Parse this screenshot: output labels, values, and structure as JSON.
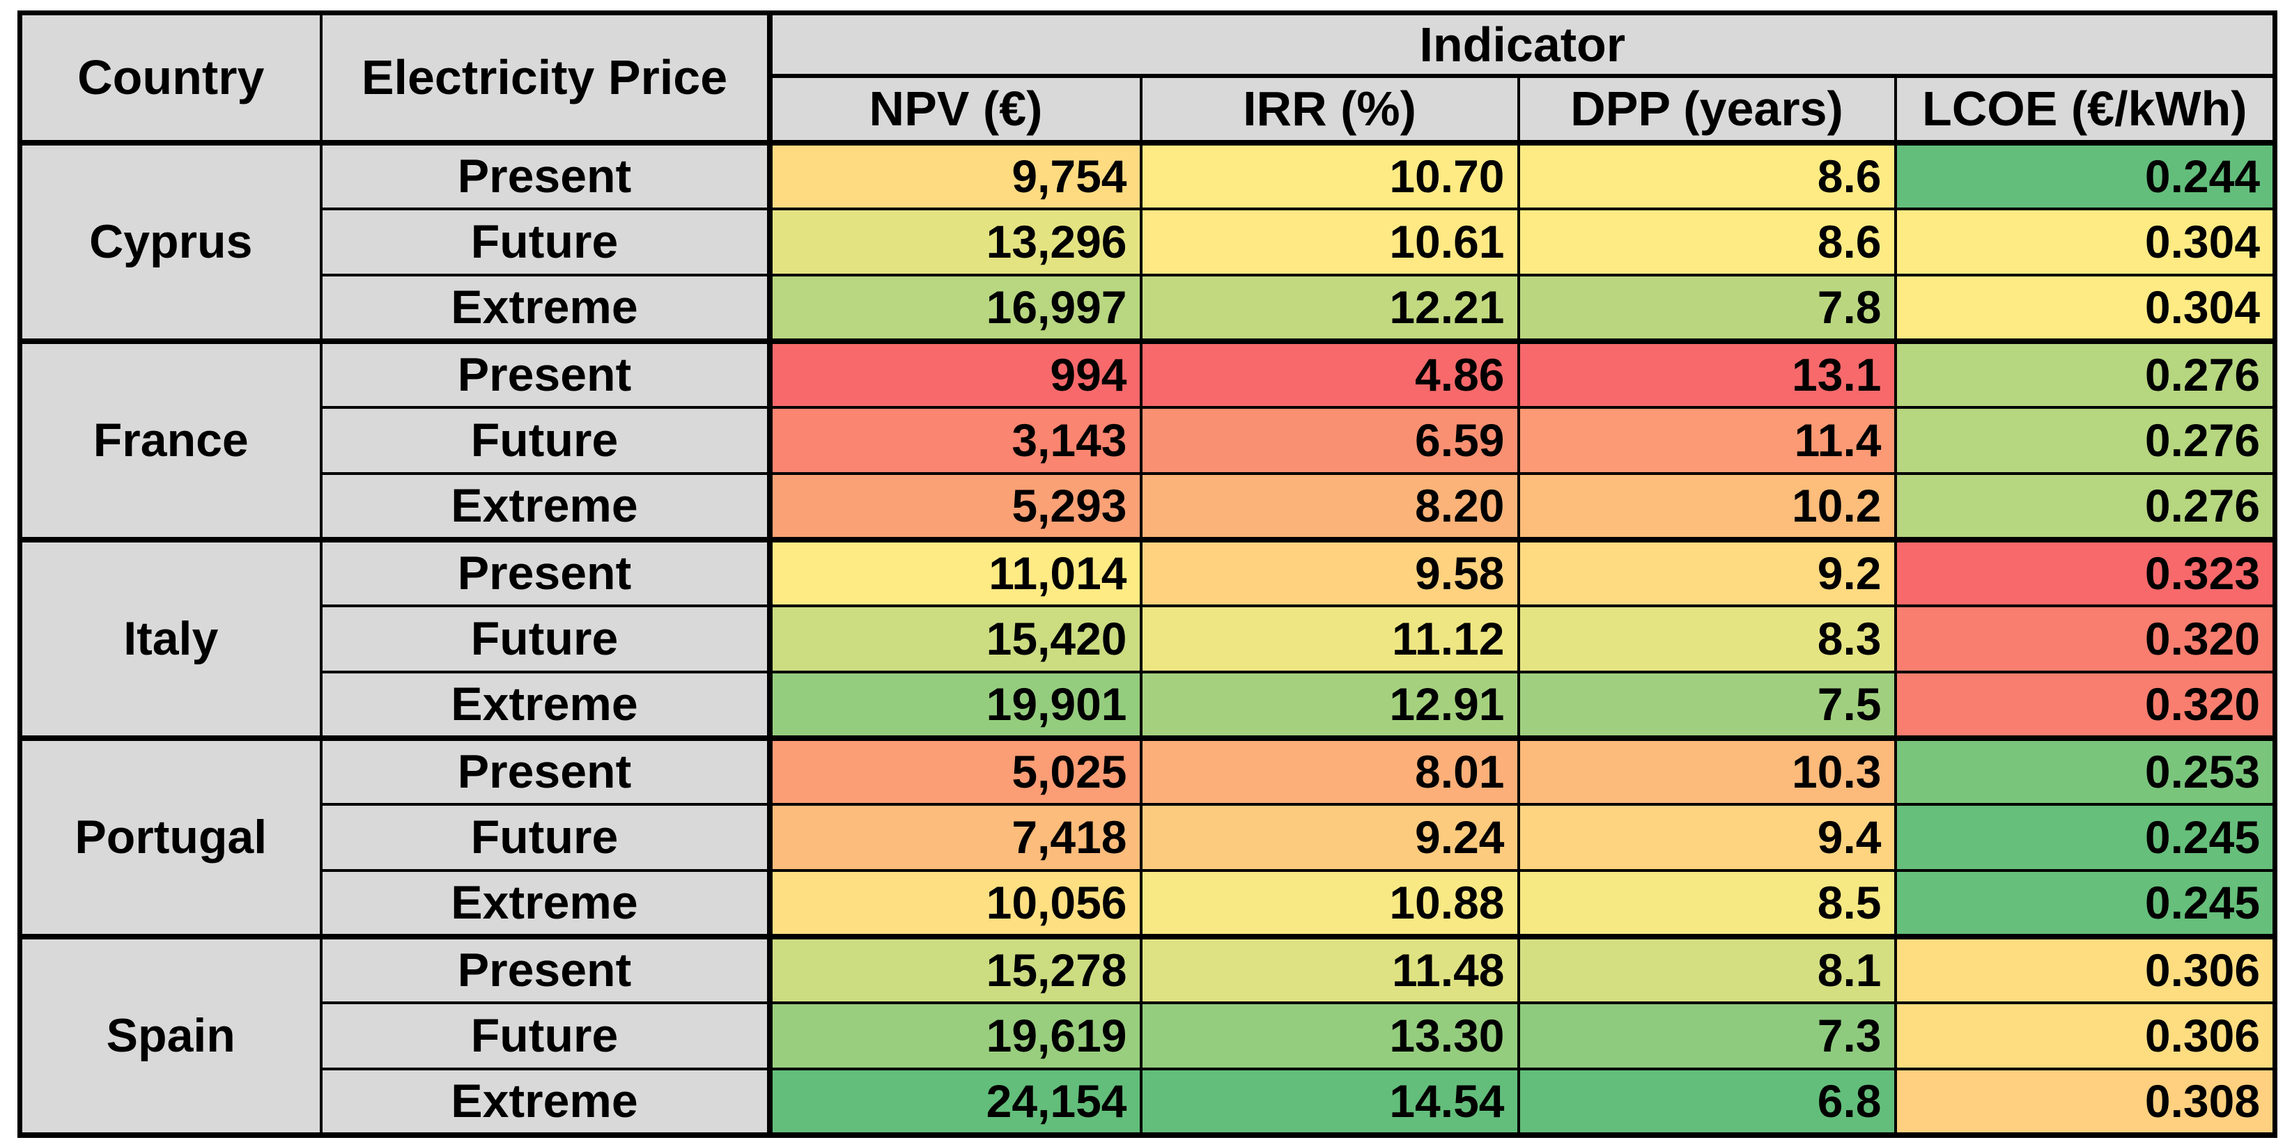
{
  "page": {
    "background": "#FFFFFF"
  },
  "table": {
    "header": {
      "country": "Country",
      "electricity_price": "Electricity Price",
      "indicator": "Indicator",
      "npv": "NPV (€)",
      "irr": "IRR (%)",
      "dpp": "DPP (years)",
      "lcoe": "LCOE (€/kWh)"
    },
    "header_fill": "#D9D9D9",
    "border_color": "#000000"
  },
  "chart_data": {
    "type": "table",
    "columns": [
      "Country",
      "Electricity Price",
      "NPV (€)",
      "IRR (%)",
      "DPP (years)",
      "LCOE (€/kWh)"
    ],
    "groups": [
      {
        "country": "Cyprus",
        "rows": [
          {
            "scenario": "Present",
            "npv": 9754,
            "npv_text": "9,754",
            "irr": 10.7,
            "irr_text": "10.70",
            "dpp": 8.6,
            "dpp_text": "8.6",
            "lcoe": 0.244,
            "lcoe_text": "0.244"
          },
          {
            "scenario": "Future",
            "npv": 13296,
            "npv_text": "13,296",
            "irr": 10.61,
            "irr_text": "10.61",
            "dpp": 8.6,
            "dpp_text": "8.6",
            "lcoe": 0.304,
            "lcoe_text": "0.304"
          },
          {
            "scenario": "Extreme",
            "npv": 16997,
            "npv_text": "16,997",
            "irr": 12.21,
            "irr_text": "12.21",
            "dpp": 7.8,
            "dpp_text": "7.8",
            "lcoe": 0.304,
            "lcoe_text": "0.304"
          }
        ]
      },
      {
        "country": "France",
        "rows": [
          {
            "scenario": "Present",
            "npv": 994,
            "npv_text": "994",
            "irr": 4.86,
            "irr_text": "4.86",
            "dpp": 13.1,
            "dpp_text": "13.1",
            "lcoe": 0.276,
            "lcoe_text": "0.276"
          },
          {
            "scenario": "Future",
            "npv": 3143,
            "npv_text": "3,143",
            "irr": 6.59,
            "irr_text": "6.59",
            "dpp": 11.4,
            "dpp_text": "11.4",
            "lcoe": 0.276,
            "lcoe_text": "0.276"
          },
          {
            "scenario": "Extreme",
            "npv": 5293,
            "npv_text": "5,293",
            "irr": 8.2,
            "irr_text": "8.20",
            "dpp": 10.2,
            "dpp_text": "10.2",
            "lcoe": 0.276,
            "lcoe_text": "0.276"
          }
        ]
      },
      {
        "country": "Italy",
        "rows": [
          {
            "scenario": "Present",
            "npv": 11014,
            "npv_text": "11,014",
            "irr": 9.58,
            "irr_text": "9.58",
            "dpp": 9.2,
            "dpp_text": "9.2",
            "lcoe": 0.323,
            "lcoe_text": "0.323"
          },
          {
            "scenario": "Future",
            "npv": 15420,
            "npv_text": "15,420",
            "irr": 11.12,
            "irr_text": "11.12",
            "dpp": 8.3,
            "dpp_text": "8.3",
            "lcoe": 0.32,
            "lcoe_text": "0.320"
          },
          {
            "scenario": "Extreme",
            "npv": 19901,
            "npv_text": "19,901",
            "irr": 12.91,
            "irr_text": "12.91",
            "dpp": 7.5,
            "dpp_text": "7.5",
            "lcoe": 0.32,
            "lcoe_text": "0.320"
          }
        ]
      },
      {
        "country": "Portugal",
        "rows": [
          {
            "scenario": "Present",
            "npv": 5025,
            "npv_text": "5,025",
            "irr": 8.01,
            "irr_text": "8.01",
            "dpp": 10.3,
            "dpp_text": "10.3",
            "lcoe": 0.253,
            "lcoe_text": "0.253"
          },
          {
            "scenario": "Future",
            "npv": 7418,
            "npv_text": "7,418",
            "irr": 9.24,
            "irr_text": "9.24",
            "dpp": 9.4,
            "dpp_text": "9.4",
            "lcoe": 0.245,
            "lcoe_text": "0.245"
          },
          {
            "scenario": "Extreme",
            "npv": 10056,
            "npv_text": "10,056",
            "irr": 10.88,
            "irr_text": "10.88",
            "dpp": 8.5,
            "dpp_text": "8.5",
            "lcoe": 0.245,
            "lcoe_text": "0.245"
          }
        ]
      },
      {
        "country": "Spain",
        "rows": [
          {
            "scenario": "Present",
            "npv": 15278,
            "npv_text": "15,278",
            "irr": 11.48,
            "irr_text": "11.48",
            "dpp": 8.1,
            "dpp_text": "8.1",
            "lcoe": 0.306,
            "lcoe_text": "0.306"
          },
          {
            "scenario": "Future",
            "npv": 19619,
            "npv_text": "19,619",
            "irr": 13.3,
            "irr_text": "13.30",
            "dpp": 7.3,
            "dpp_text": "7.3",
            "lcoe": 0.306,
            "lcoe_text": "0.306"
          },
          {
            "scenario": "Extreme",
            "npv": 24154,
            "npv_text": "24,154",
            "irr": 14.54,
            "irr_text": "14.54",
            "dpp": 6.8,
            "dpp_text": "6.8",
            "lcoe": 0.308,
            "lcoe_text": "0.308"
          }
        ]
      }
    ],
    "conditional_formatting": {
      "scale": "3-color",
      "midpoint": "50th-percentile",
      "min_color": "#F8696B",
      "mid_color": "#FFEB84",
      "max_color": "#63BE7B",
      "higher_is_better": [
        "npv",
        "irr"
      ],
      "lower_is_better": [
        "dpp",
        "lcoe"
      ]
    }
  }
}
